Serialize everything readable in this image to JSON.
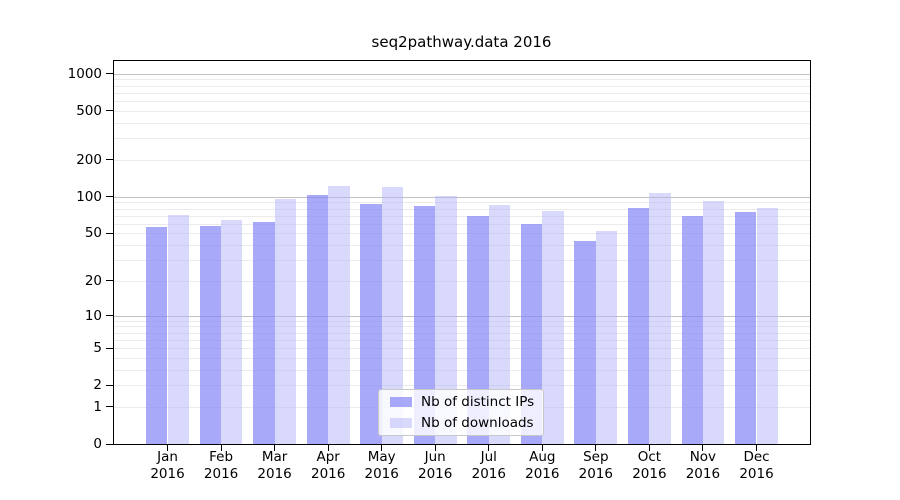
{
  "chart_data": {
    "type": "bar",
    "title": "seq2pathway.data 2016",
    "categories": [
      "Jan",
      "Feb",
      "Mar",
      "Apr",
      "May",
      "Jun",
      "Jul",
      "Aug",
      "Sep",
      "Oct",
      "Nov",
      "Dec"
    ],
    "year": "2016",
    "series": [
      {
        "key": "distinct-ips",
        "name": "Nb of distinct IPs",
        "fill": "#8888f6",
        "fill_alpha": 0.72,
        "approx_on_white": "#a9a9f8",
        "values": [
          56,
          57,
          62,
          103,
          87,
          84,
          69,
          60,
          43,
          81,
          70,
          75
        ]
      },
      {
        "key": "downloads",
        "name": "Nb of downloads",
        "fill": "#b3b3fa",
        "fill_alpha": 0.5,
        "approx_on_white": "#d9d9fb",
        "values": [
          71,
          64,
          95,
          122,
          121,
          102,
          86,
          76,
          52,
          108,
          92,
          81
        ]
      }
    ],
    "y_ticks": [
      0,
      1,
      2,
      5,
      10,
      20,
      50,
      100,
      200,
      500,
      1000
    ],
    "y_scale": "log10(1+value)",
    "y_axis_top_units": 3.104,
    "ylim": [
      0,
      1280
    ],
    "grid": {
      "horizontal": true,
      "vertical": false,
      "major_values": [
        10,
        100,
        1000
      ],
      "major_color": "#c2c2c2",
      "minor_color": "#ebebeb"
    },
    "legend_position": "bottom-center",
    "axes_color": "#000000",
    "background_color": "#ffffff"
  }
}
